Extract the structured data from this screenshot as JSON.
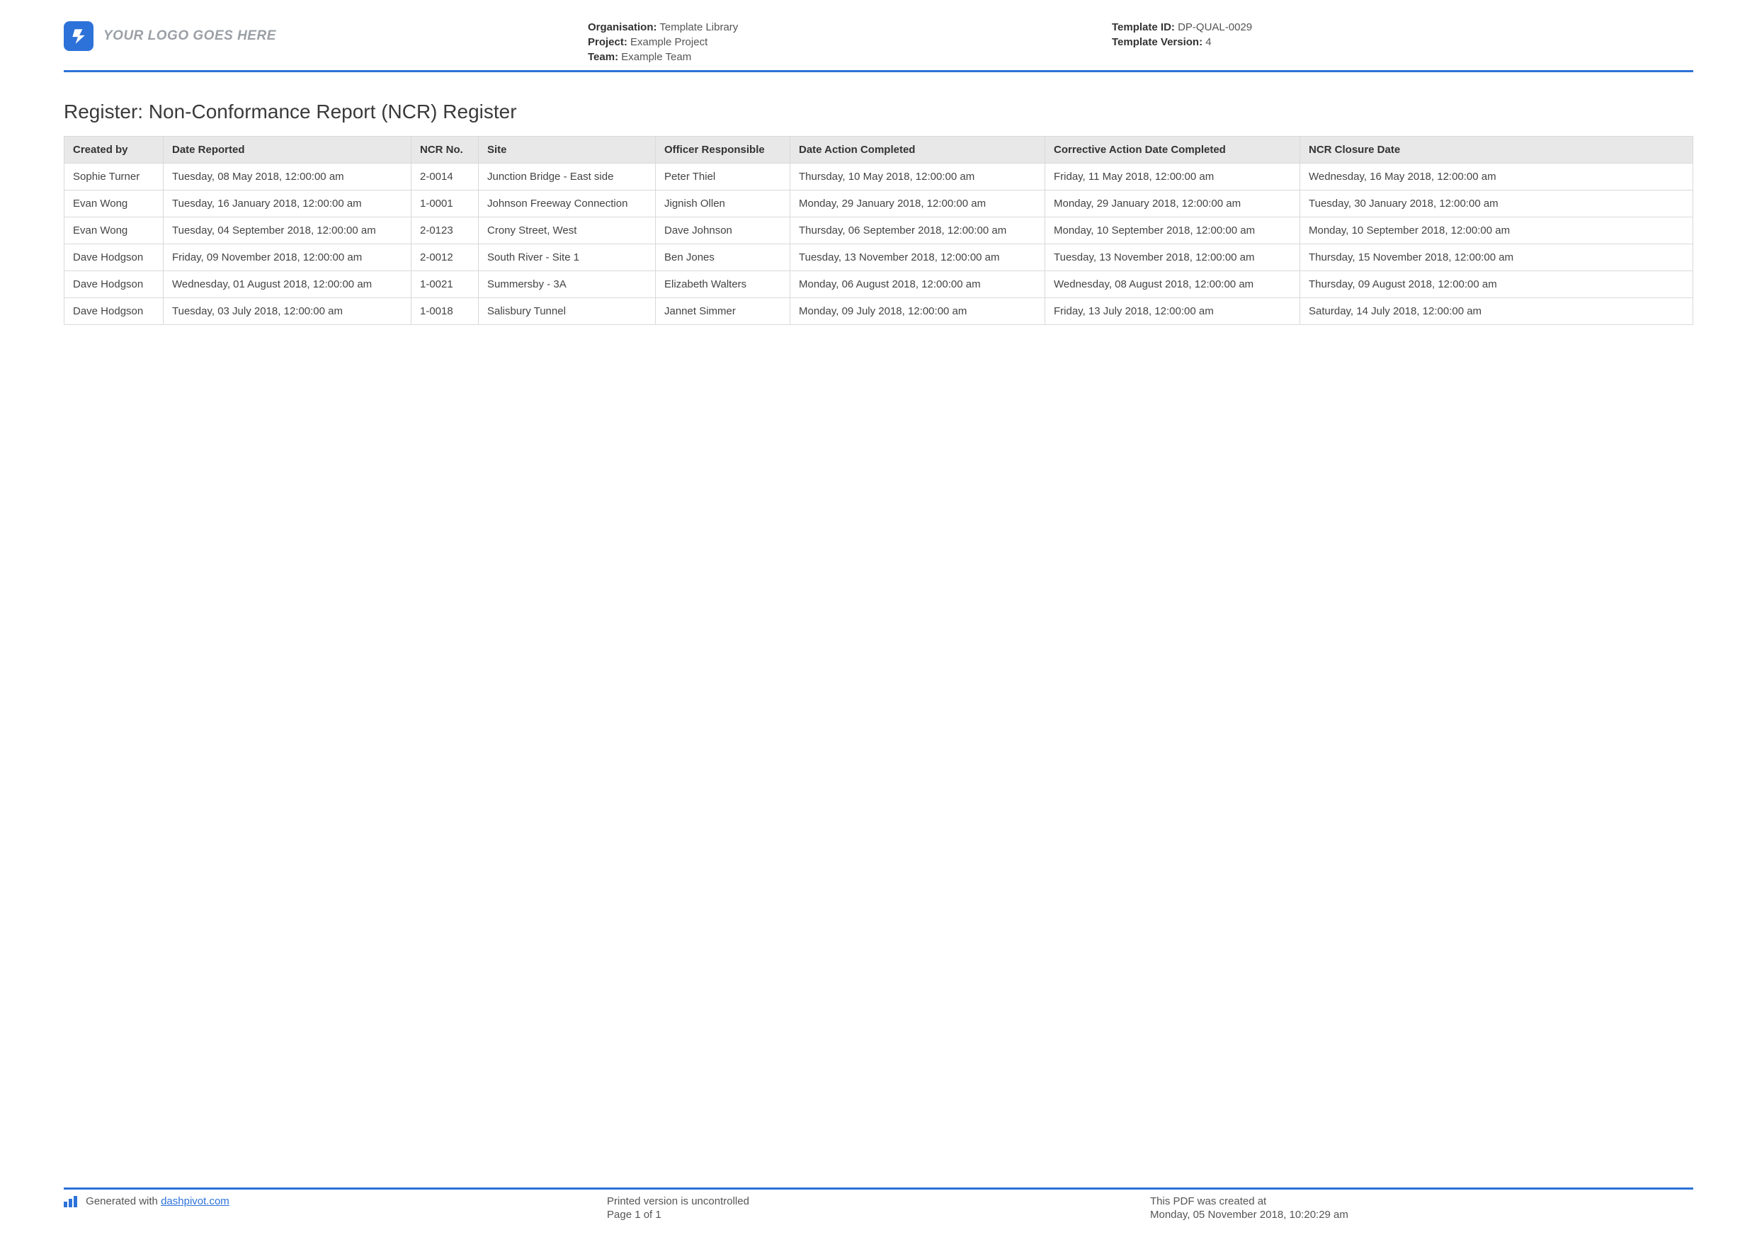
{
  "colors": {
    "accent": "#2d72d9",
    "header_bg": "#e8e8e8",
    "border": "#d9d9d9",
    "text": "#333333",
    "muted": "#555555",
    "logo_placeholder": "#9aa0a6",
    "page_bg": "#ffffff"
  },
  "logo_placeholder_text": "YOUR LOGO GOES HERE",
  "header": {
    "left": [
      {
        "label": "Organisation:",
        "value": "Template Library"
      },
      {
        "label": "Project:",
        "value": "Example Project"
      },
      {
        "label": "Team:",
        "value": "Example Team"
      }
    ],
    "right": [
      {
        "label": "Template ID:",
        "value": "DP-QUAL-0029"
      },
      {
        "label": "Template Version:",
        "value": "4"
      }
    ]
  },
  "page_title": "Register: Non-Conformance Report (NCR) Register",
  "table": {
    "type": "table",
    "font_size_pt": 11,
    "header_bg": "#e8e8e8",
    "border_color": "#d9d9d9",
    "columns": [
      "Created by",
      "Date Reported",
      "NCR No.",
      "Site",
      "Officer Responsible",
      "Date Action Completed",
      "Corrective Action Date Completed",
      "NCR Closure Date"
    ],
    "rows": [
      [
        "Sophie Turner",
        "Tuesday, 08 May 2018, 12:00:00 am",
        "2-0014",
        "Junction Bridge - East side",
        "Peter Thiel",
        "Thursday, 10 May 2018, 12:00:00 am",
        "Friday, 11 May 2018, 12:00:00 am",
        "Wednesday, 16 May 2018, 12:00:00 am"
      ],
      [
        "Evan Wong",
        "Tuesday, 16 January 2018, 12:00:00 am",
        "1-0001",
        "Johnson Freeway Connection",
        "Jignish Ollen",
        "Monday, 29 January 2018, 12:00:00 am",
        "Monday, 29 January 2018, 12:00:00 am",
        "Tuesday, 30 January 2018, 12:00:00 am"
      ],
      [
        "Evan Wong",
        "Tuesday, 04 September 2018, 12:00:00 am",
        "2-0123",
        "Crony Street, West",
        "Dave Johnson",
        "Thursday, 06 September 2018, 12:00:00 am",
        "Monday, 10 September 2018, 12:00:00 am",
        "Monday, 10 September 2018, 12:00:00 am"
      ],
      [
        "Dave Hodgson",
        "Friday, 09 November 2018, 12:00:00 am",
        "2-0012",
        "South River - Site 1",
        "Ben Jones",
        "Tuesday, 13 November 2018, 12:00:00 am",
        "Tuesday, 13 November 2018, 12:00:00 am",
        "Thursday, 15 November 2018, 12:00:00 am"
      ],
      [
        "Dave Hodgson",
        "Wednesday, 01 August 2018, 12:00:00 am",
        "1-0021",
        "Summersby - 3A",
        "Elizabeth Walters",
        "Monday, 06 August 2018, 12:00:00 am",
        "Wednesday, 08 August 2018, 12:00:00 am",
        "Thursday, 09 August 2018, 12:00:00 am"
      ],
      [
        "Dave Hodgson",
        "Tuesday, 03 July 2018, 12:00:00 am",
        "1-0018",
        "Salisbury Tunnel",
        "Jannet Simmer",
        "Monday, 09 July 2018, 12:00:00 am",
        "Friday, 13 July 2018, 12:00:00 am",
        "Saturday, 14 July 2018, 12:00:00 am"
      ]
    ]
  },
  "footer": {
    "generated_prefix": "Generated with ",
    "generated_link_text": "dashpivot.com",
    "uncontrolled": "Printed version is uncontrolled",
    "page_label": "Page 1 of 1",
    "created_label": "This PDF was created at",
    "created_value": "Monday, 05 November 2018, 10:20:29 am"
  }
}
